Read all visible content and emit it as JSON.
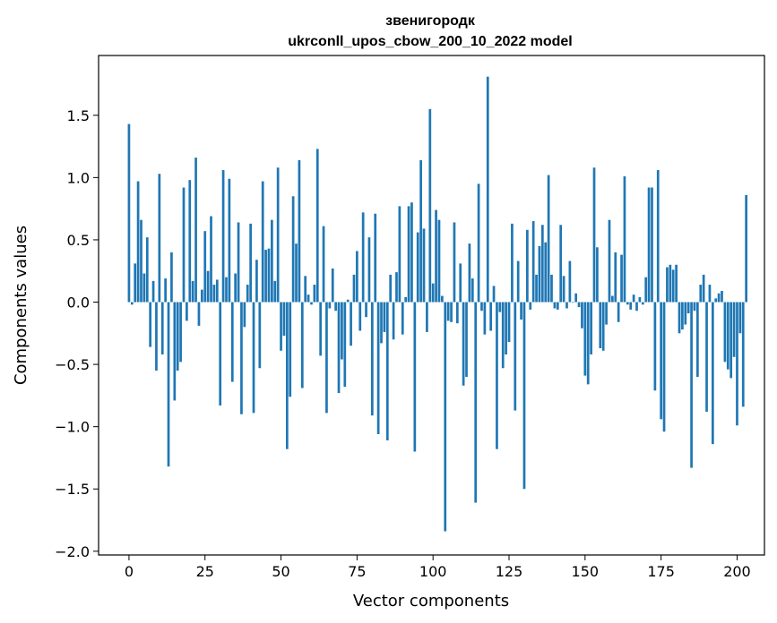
{
  "chart_data": {
    "type": "bar",
    "title": "звенигородк",
    "subtitle": "ukrconll_upos_cbow_200_10_2022 model",
    "xlabel": "Vector components",
    "ylabel": "Components values",
    "xlim": [
      -10,
      209
    ],
    "ylim": [
      -2.03,
      1.98
    ],
    "xticks": [
      0,
      25,
      50,
      75,
      100,
      125,
      150,
      175,
      200
    ],
    "yticks": [
      -2.0,
      -1.5,
      -1.0,
      -0.5,
      0.0,
      0.5,
      1.0,
      1.5
    ],
    "ytick_labels": [
      "−2.0",
      "−1.5",
      "−1.0",
      "−0.5",
      "0.0",
      "0.5",
      "1.0",
      "1.5"
    ],
    "bar_color": "#1f77b4",
    "values": [
      1.43,
      -0.02,
      0.31,
      0.97,
      0.66,
      0.23,
      0.52,
      -0.36,
      0.17,
      -0.55,
      1.03,
      -0.42,
      0.19,
      -1.32,
      0.4,
      -0.79,
      -0.55,
      -0.48,
      0.92,
      -0.15,
      0.98,
      0.17,
      1.16,
      -0.19,
      0.1,
      0.57,
      0.25,
      0.69,
      0.14,
      0.18,
      -0.83,
      1.06,
      0.2,
      0.99,
      -0.64,
      0.23,
      0.64,
      -0.9,
      -0.2,
      0.14,
      0.63,
      -0.89,
      0.34,
      -0.53,
      0.97,
      0.42,
      0.43,
      0.66,
      0.17,
      1.08,
      -0.39,
      -0.27,
      -1.18,
      -0.76,
      0.85,
      0.47,
      1.14,
      -0.69,
      0.21,
      0.06,
      -0.02,
      0.14,
      1.23,
      -0.43,
      0.61,
      -0.89,
      -0.05,
      0.27,
      -0.07,
      -0.73,
      -0.46,
      -0.68,
      0.02,
      -0.35,
      0.22,
      0.41,
      -0.23,
      0.72,
      -0.12,
      0.52,
      -0.91,
      0.71,
      -1.06,
      -0.33,
      -0.24,
      -1.11,
      0.22,
      -0.3,
      0.24,
      0.77,
      -0.26,
      0.04,
      0.77,
      0.8,
      -1.2,
      0.56,
      1.14,
      0.59,
      -0.24,
      1.55,
      0.15,
      0.74,
      0.66,
      0.05,
      -1.84,
      -0.15,
      -0.16,
      0.64,
      -0.17,
      0.31,
      -0.67,
      -0.6,
      0.47,
      0.19,
      -1.61,
      0.95,
      -0.07,
      -0.26,
      1.81,
      -0.23,
      0.13,
      -1.18,
      -0.08,
      -0.53,
      -0.42,
      -0.32,
      0.63,
      -0.87,
      0.33,
      -0.14,
      -1.5,
      0.58,
      -0.06,
      0.65,
      0.22,
      0.45,
      0.62,
      0.48,
      1.02,
      0.22,
      -0.05,
      -0.06,
      0.62,
      0.21,
      -0.05,
      0.33,
      0.0,
      0.07,
      -0.04,
      -0.21,
      -0.59,
      -0.66,
      -0.42,
      1.08,
      0.44,
      -0.37,
      -0.39,
      -0.18,
      0.66,
      0.05,
      0.4,
      -0.16,
      0.38,
      1.01,
      -0.02,
      -0.06,
      0.06,
      -0.07,
      0.04,
      -0.02,
      0.2,
      0.92,
      0.92,
      -0.71,
      1.06,
      -0.94,
      -1.04,
      0.28,
      0.3,
      0.26,
      0.3,
      -0.25,
      -0.22,
      -0.18,
      -0.09,
      -1.33,
      -0.07,
      -0.6,
      0.14,
      0.22,
      -0.88,
      0.14,
      -1.14,
      0.03,
      0.07,
      0.09,
      -0.48,
      -0.54,
      -0.61,
      -0.44,
      -0.99,
      -0.25,
      -0.84,
      0.86
    ]
  }
}
